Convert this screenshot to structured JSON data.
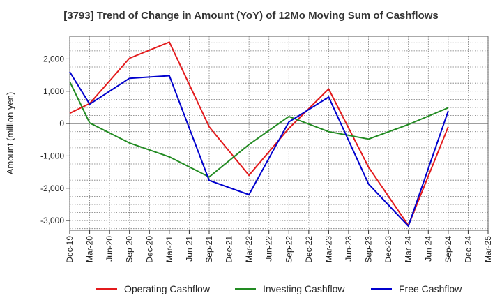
{
  "chart_data": {
    "type": "line",
    "title": "[3793]  Trend of Change in Amount (YoY) of 12Mo Moving Sum of Cashflows",
    "xlabel": "",
    "ylabel": "Amount (million yen)",
    "ylim": [
      -3300,
      2700
    ],
    "yticks": [
      -3000,
      -2000,
      -1000,
      0,
      1000,
      2000
    ],
    "ytick_labels": [
      "-3,000",
      "-2,000",
      "-1,000",
      "0",
      "1,000",
      "2,000"
    ],
    "categories": [
      "Dec-19",
      "Mar-20",
      "Jun-20",
      "Sep-20",
      "Dec-20",
      "Mar-21",
      "Jun-21",
      "Sep-21",
      "Dec-21",
      "Mar-22",
      "Jun-22",
      "Sep-22",
      "Dec-22",
      "Mar-23",
      "Jun-23",
      "Sep-23",
      "Dec-23",
      "Mar-24",
      "Jun-24",
      "Sep-24",
      "Dec-24",
      "Mar-25"
    ],
    "grid": true,
    "legend_position": "bottom",
    "series": [
      {
        "name": "Operating Cashflow",
        "color": "#e31a1c",
        "values": [
          {
            "x": "Dec-19",
            "y": 320
          },
          {
            "x": "Mar-20",
            "y": 620
          },
          {
            "x": "Sep-20",
            "y": 2020
          },
          {
            "x": "Mar-21",
            "y": 2520
          },
          {
            "x": "Sep-21",
            "y": -100
          },
          {
            "x": "Mar-22",
            "y": -1600
          },
          {
            "x": "Sep-22",
            "y": -150
          },
          {
            "x": "Mar-23",
            "y": 1070
          },
          {
            "x": "Sep-23",
            "y": -1350
          },
          {
            "x": "Mar-24",
            "y": -3150
          },
          {
            "x": "Sep-24",
            "y": -100
          }
        ]
      },
      {
        "name": "Investing Cashflow",
        "color": "#228b22",
        "values": [
          {
            "x": "Dec-19",
            "y": 1300
          },
          {
            "x": "Mar-20",
            "y": 20
          },
          {
            "x": "Sep-20",
            "y": -600
          },
          {
            "x": "Mar-21",
            "y": -1030
          },
          {
            "x": "Sep-21",
            "y": -1650
          },
          {
            "x": "Mar-22",
            "y": -650
          },
          {
            "x": "Sep-22",
            "y": 220
          },
          {
            "x": "Mar-23",
            "y": -250
          },
          {
            "x": "Sep-23",
            "y": -480
          },
          {
            "x": "Mar-24",
            "y": -30
          },
          {
            "x": "Sep-24",
            "y": 490
          }
        ]
      },
      {
        "name": "Free Cashflow",
        "color": "#0000cd",
        "values": [
          {
            "x": "Dec-19",
            "y": 1600
          },
          {
            "x": "Mar-20",
            "y": 600
          },
          {
            "x": "Sep-20",
            "y": 1400
          },
          {
            "x": "Mar-21",
            "y": 1480
          },
          {
            "x": "Sep-21",
            "y": -1760
          },
          {
            "x": "Mar-22",
            "y": -2200
          },
          {
            "x": "Sep-22",
            "y": 50
          },
          {
            "x": "Mar-23",
            "y": 820
          },
          {
            "x": "Sep-23",
            "y": -1870
          },
          {
            "x": "Mar-24",
            "y": -3170
          },
          {
            "x": "Sep-24",
            "y": 390
          }
        ]
      }
    ]
  }
}
